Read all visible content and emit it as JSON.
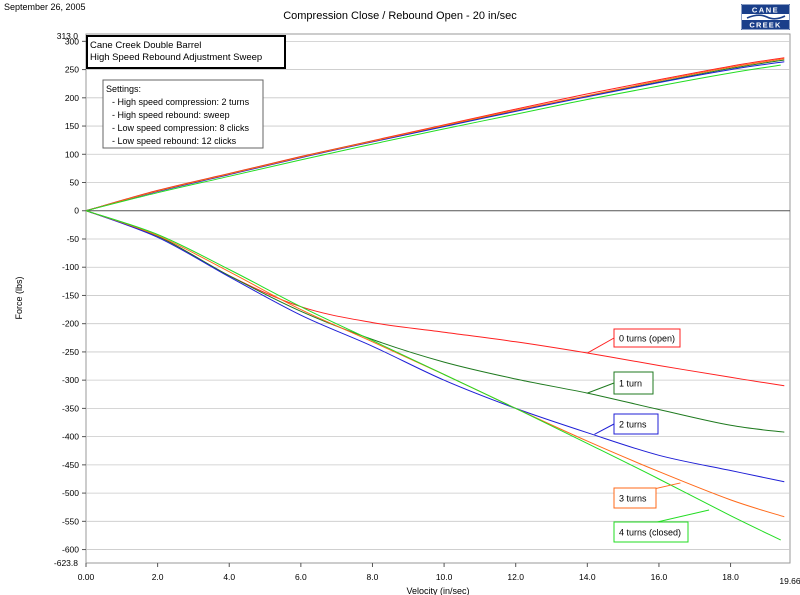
{
  "header": {
    "date": "September 26, 2005",
    "title": "Compression Close / Rebound Open  -  20 in/sec",
    "logo_line1": "CANE",
    "logo_line2": "CREEK"
  },
  "chart_data": {
    "type": "line",
    "title": "Compression Close / Rebound Open  -  20 in/sec",
    "xlabel": "Velocity (in/sec)",
    "ylabel": "Force (lbs)",
    "xlim": [
      0,
      19.66
    ],
    "ylim": [
      -623.8,
      313.0
    ],
    "x_ticks": [
      0,
      2,
      4,
      6,
      8,
      10,
      12,
      14,
      16,
      18
    ],
    "x_tick_labels": [
      "0.00",
      "2.0",
      "4.0",
      "6.0",
      "8.0",
      "10.0",
      "12.0",
      "14.0",
      "16.0",
      "18.0"
    ],
    "x_end_label": "19.66",
    "y_ticks": [
      300,
      250,
      200,
      150,
      100,
      50,
      0,
      -50,
      -100,
      -150,
      -200,
      -250,
      -300,
      -350,
      -400,
      -450,
      -500,
      -550,
      -600
    ],
    "y_top_label": "313.0",
    "y_bottom_label": "-623.8",
    "grid": "horizontal",
    "info_box": {
      "line1": "Cane Creek Double Barrel",
      "line2": "High Speed Rebound Adjustment Sweep"
    },
    "settings_box": {
      "title": "Settings:",
      "lines": [
        "- High speed compression: 2 turns",
        "- High speed rebound: sweep",
        "- Low speed compression: 8 clicks",
        "- Low speed rebound: 12 clicks"
      ]
    },
    "series": [
      {
        "name": "0 turns (open)",
        "color": "#ff2020",
        "x": [
          0,
          2,
          4,
          6,
          8,
          10,
          12,
          14,
          16,
          18,
          19.5
        ],
        "compression": [
          0,
          36,
          66,
          96,
          124,
          152,
          180,
          207,
          232,
          256,
          271
        ],
        "rebound": [
          0,
          -45,
          -115,
          -170,
          -198,
          -215,
          -232,
          -252,
          -274,
          -295,
          -310
        ]
      },
      {
        "name": "1 turn",
        "color": "#1f7a1f",
        "x": [
          0,
          2,
          4,
          6,
          8,
          10,
          12,
          14,
          16,
          18,
          19.5
        ],
        "compression": [
          0,
          35,
          65,
          95,
          123,
          150,
          177,
          203,
          228,
          252,
          267
        ],
        "rebound": [
          0,
          -45,
          -115,
          -178,
          -228,
          -268,
          -298,
          -323,
          -352,
          -380,
          -392
        ]
      },
      {
        "name": "2 turns",
        "color": "#1f1fd6",
        "x": [
          0,
          2,
          4,
          6,
          8,
          10,
          12,
          14,
          16,
          18,
          19.5
        ],
        "compression": [
          0,
          34,
          64,
          94,
          122,
          149,
          176,
          202,
          227,
          250,
          264
        ],
        "rebound": [
          0,
          -47,
          -117,
          -185,
          -240,
          -300,
          -350,
          -393,
          -433,
          -460,
          -480
        ]
      },
      {
        "name": "3 turns",
        "color": "#ff6a1a",
        "x": [
          0,
          2,
          4,
          6,
          8,
          10,
          12,
          14,
          16,
          18,
          19.5
        ],
        "compression": [
          0,
          35,
          65,
          95,
          123,
          151,
          178,
          204,
          230,
          254,
          269
        ],
        "rebound": [
          0,
          -44,
          -108,
          -175,
          -232,
          -290,
          -350,
          -408,
          -462,
          -512,
          -542
        ]
      },
      {
        "name": "4 turns (closed)",
        "color": "#22dd22",
        "x": [
          0,
          2,
          4,
          6,
          8,
          10,
          12,
          14,
          16,
          18,
          19.4
        ],
        "compression": [
          0,
          32,
          61,
          90,
          118,
          145,
          171,
          197,
          221,
          244,
          258
        ],
        "rebound": [
          0,
          -42,
          -104,
          -170,
          -230,
          -290,
          -350,
          -412,
          -475,
          -540,
          -583
        ]
      }
    ],
    "annotations": [
      {
        "label": "0 turns (open)",
        "point": [
          14.0,
          -252
        ]
      },
      {
        "label": "1 turn",
        "point": [
          14.0,
          -323
        ]
      },
      {
        "label": "2 turns",
        "point": [
          14.2,
          -396
        ]
      },
      {
        "label": "3 turns",
        "point": [
          16.6,
          -482
        ]
      },
      {
        "label": "4 turns (closed)",
        "point": [
          17.4,
          -530
        ]
      }
    ]
  }
}
